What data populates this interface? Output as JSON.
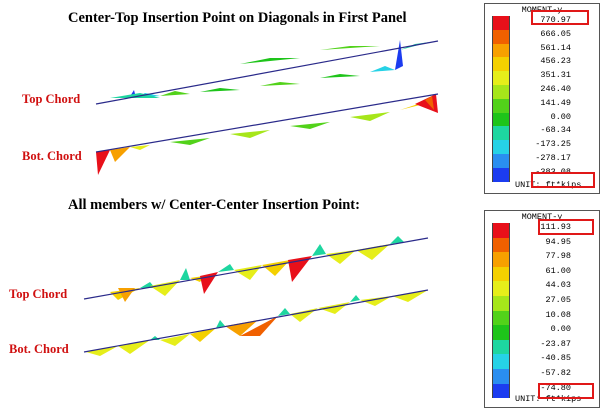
{
  "top_section": {
    "title": "Center-Top Insertion Point on Diagonals in First Panel",
    "top_chord_label": "Top Chord",
    "bot_chord_label": "Bot. Chord"
  },
  "bottom_section": {
    "title": "All members w/ Center-Center Insertion Point:",
    "top_chord_label": "Top Chord",
    "bot_chord_label": "Bot. Chord"
  },
  "legend_top": {
    "header": "MOMENT-y",
    "values": [
      "770.97",
      "666.05",
      "561.14",
      "456.23",
      "351.31",
      "246.40",
      "141.49",
      "0.00",
      "-68.34",
      "-173.25",
      "-278.17",
      "-383.08"
    ],
    "unit": "UNIT: ft*kips",
    "highlighted_max": "770.97",
    "highlighted_min": "-383.08"
  },
  "legend_bottom": {
    "header": "MOMENT-y",
    "values": [
      "111.93",
      "94.95",
      "77.98",
      "61.00",
      "44.03",
      "27.05",
      "10.08",
      "0.00",
      "-23.87",
      "-40.85",
      "-57.82",
      "-74.80"
    ],
    "unit": "UNIT: ft*kips",
    "highlighted_max": "111.93",
    "highlighted_min": "-74.80"
  },
  "contour_colors": [
    "#e8101a",
    "#f06000",
    "#f7a000",
    "#f4d000",
    "#e6ee1a",
    "#a6e61a",
    "#52d21a",
    "#1ec41a",
    "#1ed6a0",
    "#26d2e6",
    "#2a8ef0",
    "#1c3cf0"
  ]
}
